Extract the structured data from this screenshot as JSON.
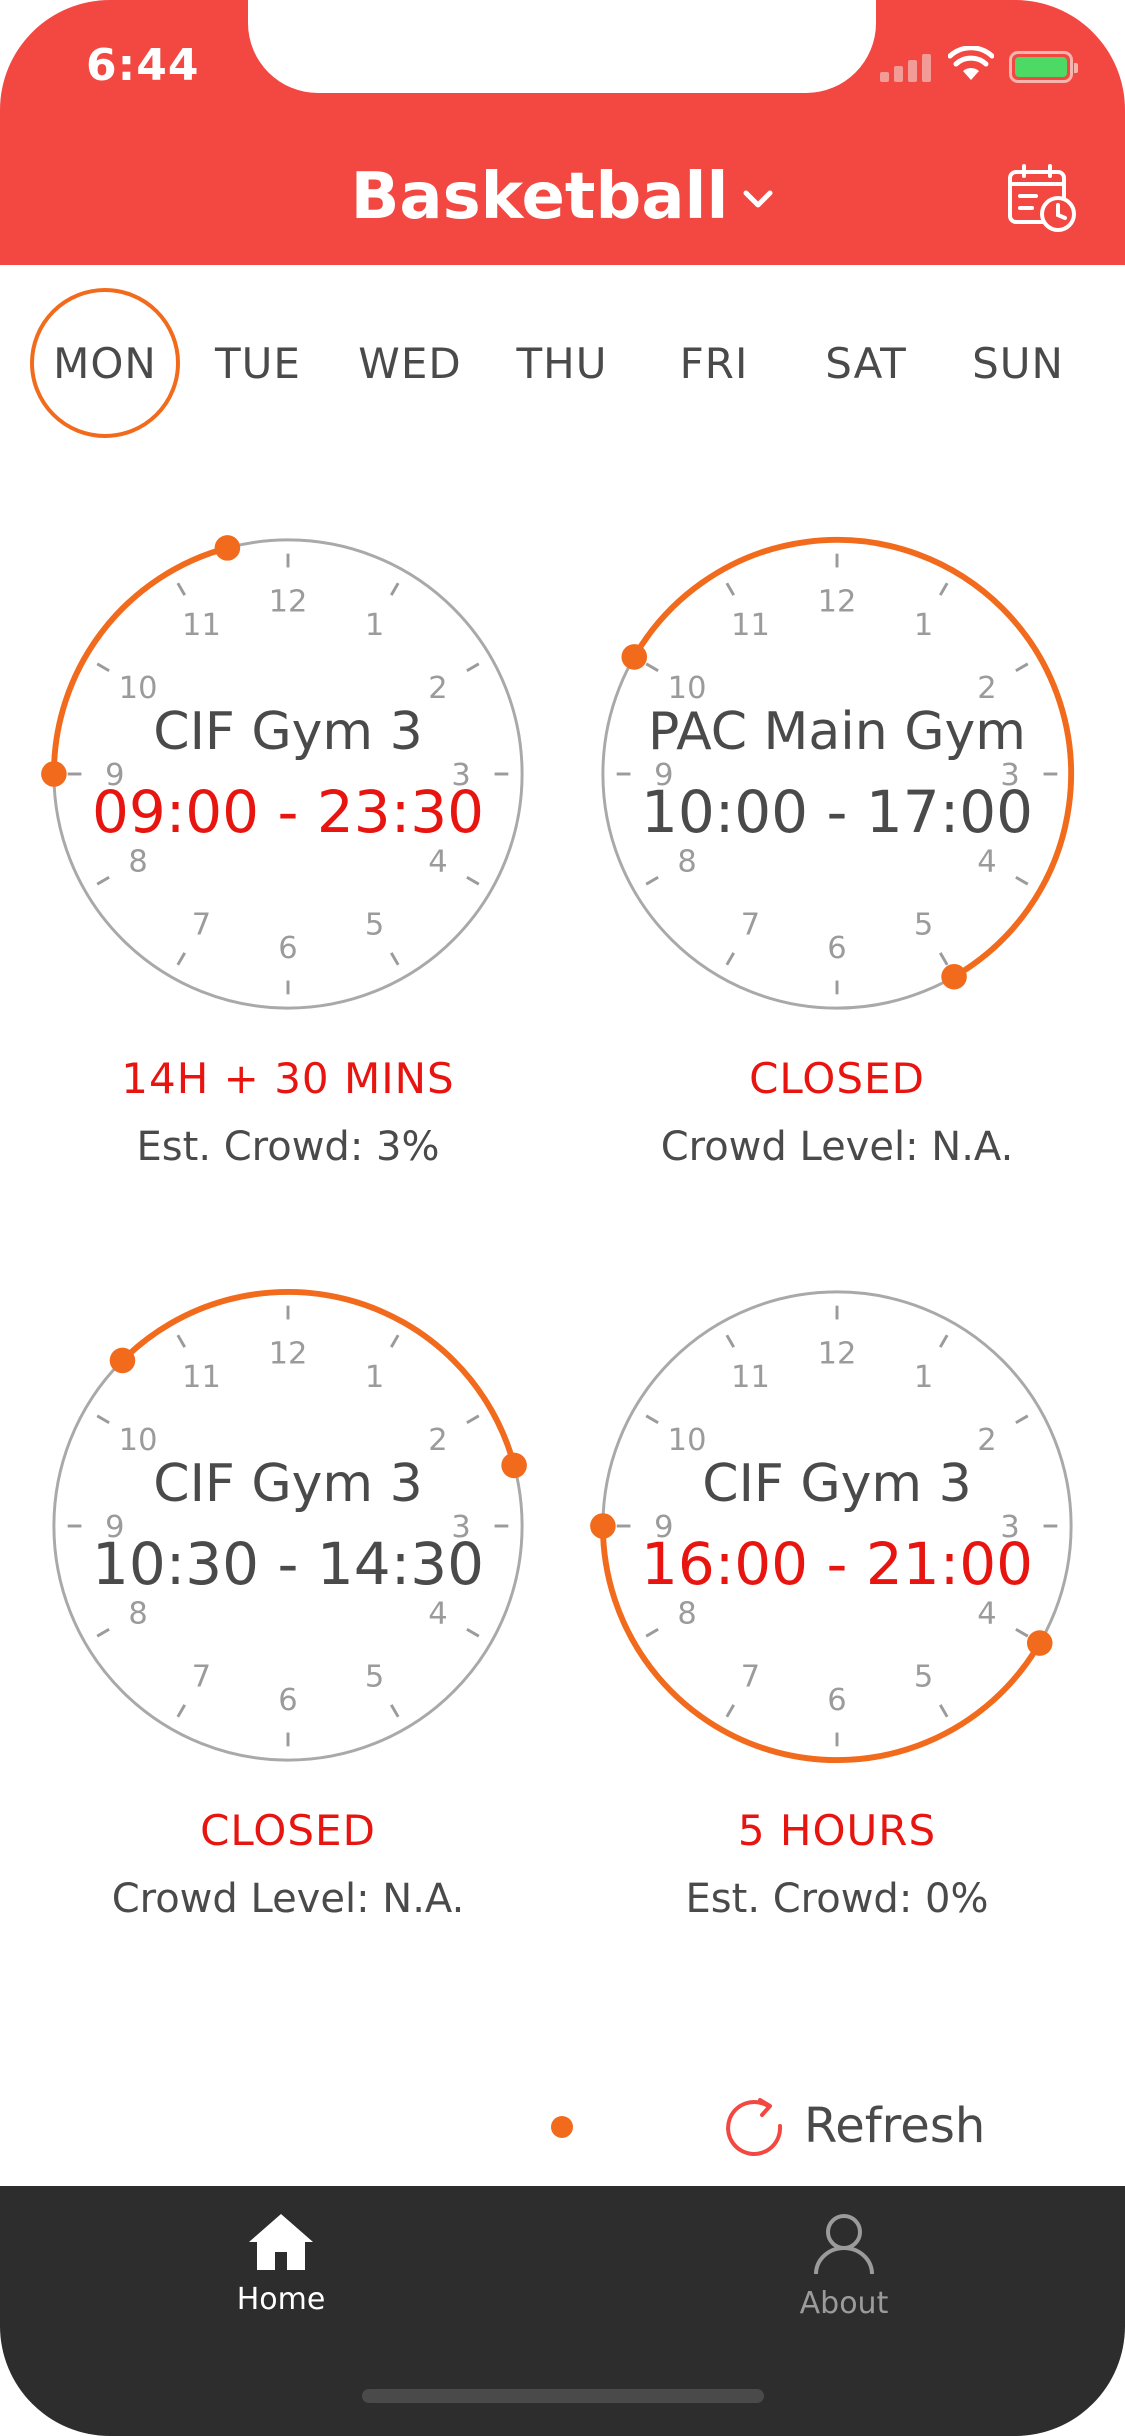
{
  "status_bar": {
    "time": "6:44"
  },
  "header": {
    "title": "Basketball"
  },
  "days": [
    {
      "label": "MON",
      "active": true
    },
    {
      "label": "TUE",
      "active": false
    },
    {
      "label": "WED",
      "active": false
    },
    {
      "label": "THU",
      "active": false
    },
    {
      "label": "FRI",
      "active": false
    },
    {
      "label": "SAT",
      "active": false
    },
    {
      "label": "SUN",
      "active": false
    }
  ],
  "gyms": [
    {
      "name": "CIF Gym 3",
      "hours": "09:00 - 23:30",
      "status": "14H + 30 MINS",
      "crowd": "Est. Crowd: 3%",
      "open": true
    },
    {
      "name": "PAC Main Gym",
      "hours": "10:00 - 17:00",
      "status": "CLOSED",
      "crowd": "Crowd Level: N.A.",
      "open": false
    },
    {
      "name": "CIF Gym 3",
      "hours": "10:30 - 14:30",
      "status": "CLOSED",
      "crowd": "Crowd Level: N.A.",
      "open": false
    },
    {
      "name": "CIF Gym 3",
      "hours": "16:00 - 21:00",
      "status": "5 HOURS",
      "crowd": "Est. Crowd: 0%",
      "open": true
    }
  ],
  "clock_numbers": [
    "12",
    "1",
    "2",
    "3",
    "4",
    "5",
    "6",
    "7",
    "8",
    "9",
    "10",
    "11"
  ],
  "refresh": {
    "label": "Refresh"
  },
  "tabs": [
    {
      "label": "Home",
      "icon": "home-icon",
      "active": true
    },
    {
      "label": "About",
      "icon": "person-icon",
      "active": false
    }
  ],
  "colors": {
    "header": "#f24841",
    "accent": "#f26b1d",
    "alert": "#e8140f",
    "tabbar": "#2d2d2d",
    "grey": "#a9a9a9"
  }
}
